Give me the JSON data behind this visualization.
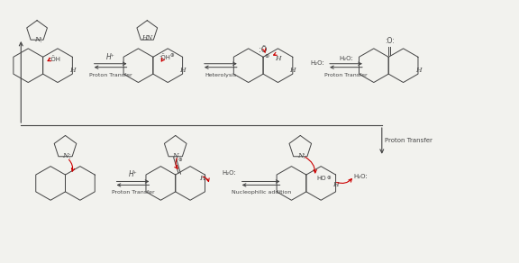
{
  "bg_color": "#f2f2ee",
  "line_color": "#444444",
  "red_color": "#cc0000",
  "row1_labels": [
    "Proton Transfer",
    "Nucleophilic addition"
  ],
  "row2_label": "Proton Transfer",
  "row3_labels": [
    "Proton Transfer",
    "Heterolysis",
    "Proton Transfer"
  ],
  "top_arrow_labels": [
    "H⁺",
    "H₂O:"
  ],
  "bot_arrow_labels": [
    "H⁺",
    "",
    "H₂O:"
  ]
}
